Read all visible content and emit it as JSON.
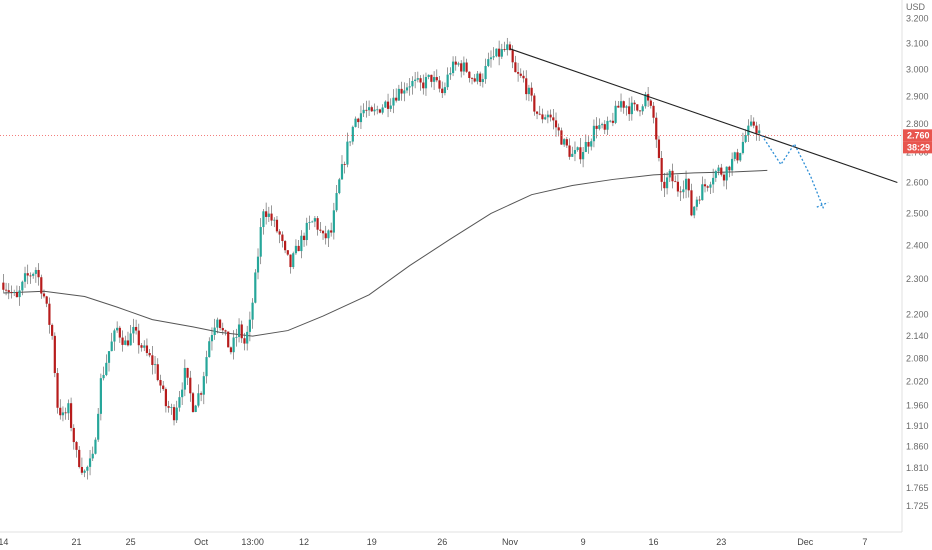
{
  "colors": {
    "up": "#26a69a",
    "down": "#b71c1c",
    "wick": "#555555",
    "ma": "#555555",
    "trendline": "#222222",
    "projection": "#2f8fd6",
    "price_line": "#ef5350",
    "badge": "#e8554e",
    "axis_text": "#6b6b6b"
  },
  "chart_data": {
    "type": "candlestick",
    "currency_label": "USD",
    "y_axis": {
      "scale": "log",
      "ylim": [
        1.68,
        3.26
      ],
      "ticks": [
        "3.200",
        "3.100",
        "3.000",
        "2.900",
        "2.800",
        "2.700",
        "2.600",
        "2.500",
        "2.400",
        "2.300",
        "2.200",
        "2.140",
        "2.080",
        "2.020",
        "1.960",
        "1.910",
        "1.860",
        "1.810",
        "1.765",
        "1.725"
      ],
      "tick_values": [
        3.2,
        3.1,
        3.0,
        2.9,
        2.8,
        2.7,
        2.6,
        2.5,
        2.4,
        2.3,
        2.2,
        2.14,
        2.08,
        2.02,
        1.96,
        1.91,
        1.86,
        1.81,
        1.765,
        1.725
      ]
    },
    "x_axis": {
      "start_date": "Sep 14",
      "labels": [
        "14",
        "21",
        "25",
        "Oct",
        "13:00",
        "12",
        "19",
        "26",
        "Nov",
        "9",
        "16",
        "23",
        "Dec",
        "7"
      ],
      "label_bar_index": [
        0,
        27,
        47,
        73,
        92,
        111,
        136,
        162,
        187,
        214,
        240,
        265,
        296,
        318
      ],
      "total_bars": 330
    },
    "last_price": {
      "value": "2.760",
      "countdown": "38:29"
    },
    "moving_average": {
      "bar_index": [
        0,
        15,
        30,
        42,
        55,
        70,
        80,
        92,
        105,
        118,
        135,
        150,
        165,
        180,
        195,
        210,
        225,
        240,
        255,
        270,
        282
      ],
      "values": [
        2.26,
        2.265,
        2.25,
        2.22,
        2.185,
        2.165,
        2.15,
        2.14,
        2.155,
        2.195,
        2.255,
        2.34,
        2.42,
        2.5,
        2.56,
        2.59,
        2.61,
        2.625,
        2.632,
        2.635,
        2.64
      ]
    },
    "trendline": {
      "bar_index": [
        187,
        330
      ],
      "values": [
        3.08,
        2.6
      ]
    },
    "projection": {
      "bar_index": [
        280,
        287,
        292,
        298,
        303
      ],
      "values": [
        2.76,
        2.66,
        2.73,
        2.62,
        2.51
      ]
    },
    "projection_tail": {
      "bar_index": [
        301,
        303
      ],
      "values": [
        2.52,
        2.51
      ]
    },
    "candle_path": {
      "bar_index": [
        0,
        5,
        8,
        12,
        15,
        18,
        20,
        22,
        24,
        27,
        30,
        33,
        36,
        39,
        42,
        45,
        48,
        52,
        56,
        60,
        63,
        65,
        67,
        70,
        73,
        76,
        79,
        81,
        84,
        87,
        89,
        91,
        93,
        96,
        99,
        102,
        104,
        106,
        109,
        112,
        115,
        118,
        121,
        124,
        127,
        130,
        133,
        136,
        139,
        142,
        146,
        150,
        154,
        158,
        162,
        165,
        168,
        171,
        174,
        177,
        180,
        183,
        186,
        187,
        189,
        192,
        195,
        198,
        201,
        204,
        207,
        210,
        213,
        216,
        219,
        222,
        225,
        228,
        231,
        234,
        237,
        240,
        241,
        243,
        246,
        249,
        252,
        254,
        256,
        258,
        260,
        262,
        264,
        266,
        268,
        271,
        274,
        277,
        279
      ],
      "closes": [
        2.29,
        2.24,
        2.3,
        2.33,
        2.25,
        2.14,
        1.96,
        1.93,
        1.95,
        1.84,
        1.8,
        1.83,
        2.02,
        2.1,
        2.16,
        2.12,
        2.15,
        2.1,
        2.06,
        1.96,
        1.94,
        1.99,
        2.04,
        1.96,
        2.0,
        2.13,
        2.2,
        2.15,
        2.1,
        2.16,
        2.12,
        2.17,
        2.3,
        2.52,
        2.48,
        2.43,
        2.37,
        2.34,
        2.4,
        2.45,
        2.48,
        2.42,
        2.44,
        2.6,
        2.72,
        2.82,
        2.85,
        2.83,
        2.86,
        2.88,
        2.92,
        2.95,
        2.94,
        2.97,
        2.91,
        3.0,
        3.02,
        3.0,
        2.96,
        2.98,
        3.04,
        3.06,
        3.08,
        3.05,
        2.98,
        2.96,
        2.88,
        2.82,
        2.84,
        2.79,
        2.73,
        2.69,
        2.7,
        2.74,
        2.8,
        2.77,
        2.82,
        2.88,
        2.86,
        2.85,
        2.9,
        2.82,
        2.75,
        2.58,
        2.62,
        2.58,
        2.61,
        2.5,
        2.55,
        2.58,
        2.6,
        2.63,
        2.64,
        2.63,
        2.66,
        2.69,
        2.76,
        2.8,
        2.77
      ]
    }
  }
}
